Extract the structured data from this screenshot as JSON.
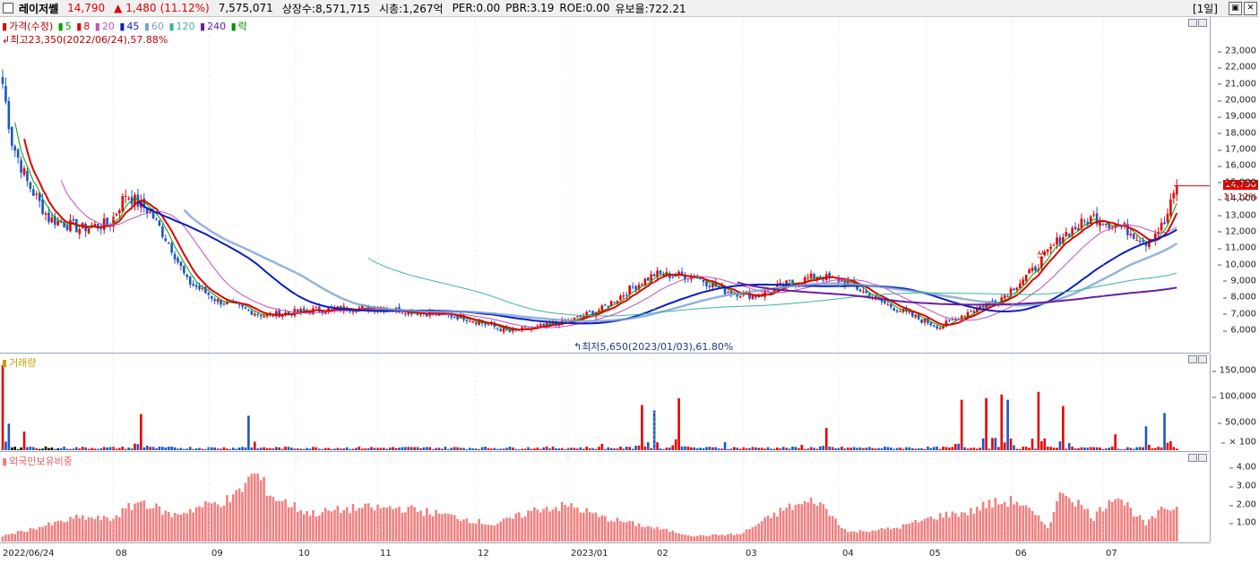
{
  "header": {
    "stock_name": "레이저쎌",
    "price": "14,790",
    "change": "▲ 1,480",
    "change_pct": "(11.12%)",
    "volume": "7,575,071",
    "listed_shares": "상장수:8,571,715",
    "market_cap": "시총:1,267억",
    "per": "PER:0.00",
    "pbr": "PBR:3.19",
    "roe": "ROE:0.00",
    "float_ratio": "유보율:722.21",
    "period": "[1일]"
  },
  "price_pane": {
    "legend": {
      "title": "가격(수정)",
      "ma5": "5",
      "ma8": "8",
      "ma20": "20",
      "ma45": "45",
      "ma60": "60",
      "ma120": "120",
      "ma240": "240",
      "lock": "락"
    },
    "high_note": "최고23,350(2022/06/24),57.88%",
    "low_note": "최저5,650(2023/01/03),61.80%",
    "last_price_label": "14,790",
    "last_pct_label": "11.12%",
    "marker": "쓰",
    "ticks": [
      "23,000",
      "22,000",
      "21,000",
      "20,000",
      "19,000",
      "18,000",
      "17,000",
      "16,000",
      "15,000",
      "14,000",
      "13,000",
      "12,000",
      "11,000",
      "10,000",
      "9,000",
      "8,000",
      "7,000",
      "6,000"
    ]
  },
  "volume_pane": {
    "label": "거래량",
    "ticks": [
      "150,000",
      "100,000",
      "50,000"
    ],
    "unit": "× 100"
  },
  "foreign_pane": {
    "label": "외국인보유비중",
    "ticks": [
      "4.00",
      "3.00",
      "2.00",
      "1.00"
    ]
  },
  "x_axis": [
    "2022/06/24",
    "08",
    "09",
    "10",
    "11",
    "12",
    "2023/01",
    "02",
    "03",
    "04",
    "05",
    "06",
    "07"
  ],
  "colors": {
    "up": "#e60000",
    "down": "#1b56c8",
    "ma5": "#00a000",
    "ma8": "#e00000",
    "ma20": "#c050c0",
    "ma45": "#0a1ebe",
    "ma60": "#7aa0d0",
    "ma120": "#3cb4a0",
    "ma240": "#6a1ea0"
  },
  "chart_data": {
    "type": "candlestick",
    "title": "레이저쎌",
    "x_months": [
      "2022/06/24",
      "08",
      "09",
      "10",
      "11",
      "12",
      "2023/01",
      "02",
      "03",
      "04",
      "05",
      "06",
      "07"
    ],
    "price_anchors": [
      [
        0,
        21000
      ],
      [
        3,
        17500
      ],
      [
        8,
        15000
      ],
      [
        15,
        12800
      ],
      [
        25,
        12200
      ],
      [
        35,
        12500
      ],
      [
        40,
        14300
      ],
      [
        48,
        13200
      ],
      [
        55,
        11000
      ],
      [
        60,
        9000
      ],
      [
        70,
        7800
      ],
      [
        85,
        6900
      ],
      [
        100,
        7200
      ],
      [
        120,
        7400
      ],
      [
        135,
        7100
      ],
      [
        150,
        6800
      ],
      [
        165,
        5900
      ],
      [
        175,
        6200
      ],
      [
        185,
        6600
      ],
      [
        195,
        7300
      ],
      [
        205,
        8600
      ],
      [
        212,
        9400
      ],
      [
        225,
        9300
      ],
      [
        235,
        8400
      ],
      [
        245,
        8100
      ],
      [
        255,
        8800
      ],
      [
        265,
        9300
      ],
      [
        275,
        8900
      ],
      [
        285,
        7800
      ],
      [
        298,
        6700
      ],
      [
        305,
        6200
      ],
      [
        315,
        7200
      ],
      [
        325,
        8000
      ],
      [
        335,
        9600
      ],
      [
        345,
        11800
      ],
      [
        355,
        12900
      ],
      [
        365,
        12200
      ],
      [
        372,
        11400
      ],
      [
        378,
        12500
      ],
      [
        382,
        14790
      ]
    ],
    "volume_spikes": [
      [
        0,
        160000
      ],
      [
        2,
        50000
      ],
      [
        7,
        35000
      ],
      [
        45,
        68000
      ],
      [
        80,
        65000
      ],
      [
        195,
        12000
      ],
      [
        208,
        85000
      ],
      [
        212,
        75000
      ],
      [
        220,
        98000
      ],
      [
        235,
        15000
      ],
      [
        260,
        10000
      ],
      [
        268,
        42000
      ],
      [
        312,
        95000
      ],
      [
        320,
        98000
      ],
      [
        325,
        105000
      ],
      [
        327,
        95000
      ],
      [
        337,
        110000
      ],
      [
        345,
        83000
      ],
      [
        362,
        30000
      ],
      [
        372,
        45000
      ],
      [
        378,
        70000
      ]
    ],
    "foreign_ratio_anchors": [
      [
        0,
        0.3
      ],
      [
        15,
        0.9
      ],
      [
        25,
        1.3
      ],
      [
        35,
        1.2
      ],
      [
        45,
        2.2
      ],
      [
        55,
        1.4
      ],
      [
        65,
        1.9
      ],
      [
        75,
        2.3
      ],
      [
        82,
        3.7
      ],
      [
        88,
        2.4
      ],
      [
        100,
        1.5
      ],
      [
        115,
        1.8
      ],
      [
        130,
        1.8
      ],
      [
        145,
        1.4
      ],
      [
        160,
        0.9
      ],
      [
        175,
        1.8
      ],
      [
        185,
        1.9
      ],
      [
        195,
        1.3
      ],
      [
        210,
        0.8
      ],
      [
        225,
        0.3
      ],
      [
        240,
        0.4
      ],
      [
        255,
        1.8
      ],
      [
        265,
        2.2
      ],
      [
        275,
        0.5
      ],
      [
        290,
        0.7
      ],
      [
        305,
        1.4
      ],
      [
        315,
        1.6
      ],
      [
        320,
        2.0
      ],
      [
        330,
        2.2
      ],
      [
        340,
        0.8
      ],
      [
        345,
        2.8
      ],
      [
        355,
        1.3
      ],
      [
        362,
        2.6
      ],
      [
        372,
        0.9
      ],
      [
        378,
        1.8
      ]
    ]
  }
}
